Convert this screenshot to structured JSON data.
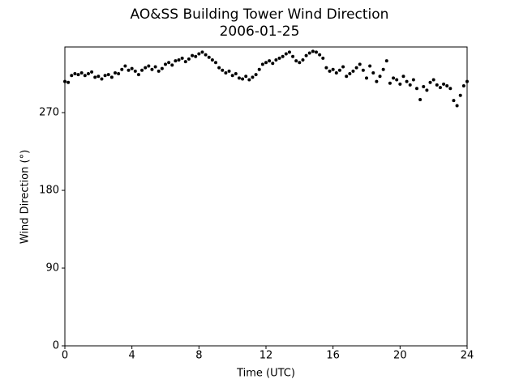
{
  "chart_data": {
    "type": "scatter",
    "title": "AO&SS Building Tower Wind Direction",
    "subtitle": "2006-01-25",
    "x_label": "Time (UTC)",
    "y_label": "Wind Direction (°)",
    "color": "#000000",
    "xlim": [
      0,
      24
    ],
    "xticks": [
      0,
      4,
      8,
      12,
      16,
      20,
      24
    ],
    "ylim": [
      0,
      346
    ],
    "yticks": [
      0,
      90,
      180,
      270
    ],
    "x": [
      0,
      0.2,
      0.4,
      0.6,
      0.8,
      1.0,
      1.2,
      1.4,
      1.6,
      1.8,
      2.0,
      2.2,
      2.4,
      2.6,
      2.8,
      3.0,
      3.2,
      3.4,
      3.6,
      3.8,
      4.0,
      4.2,
      4.4,
      4.6,
      4.8,
      5.0,
      5.2,
      5.4,
      5.6,
      5.8,
      6.0,
      6.2,
      6.4,
      6.6,
      6.8,
      7.0,
      7.2,
      7.4,
      7.6,
      7.8,
      8.0,
      8.2,
      8.4,
      8.6,
      8.8,
      9.0,
      9.2,
      9.4,
      9.6,
      9.8,
      10.0,
      10.2,
      10.4,
      10.6,
      10.8,
      11.0,
      11.2,
      11.4,
      11.6,
      11.8,
      12.0,
      12.2,
      12.4,
      12.6,
      12.8,
      13.0,
      13.2,
      13.4,
      13.6,
      13.8,
      14.0,
      14.2,
      14.4,
      14.6,
      14.8,
      15.0,
      15.2,
      15.4,
      15.6,
      15.8,
      16.0,
      16.2,
      16.4,
      16.6,
      16.8,
      17.0,
      17.2,
      17.4,
      17.6,
      17.8,
      18.0,
      18.2,
      18.4,
      18.6,
      18.8,
      19.0,
      19.2,
      19.4,
      19.6,
      19.8,
      20.0,
      20.2,
      20.4,
      20.6,
      20.8,
      21.0,
      21.2,
      21.4,
      21.6,
      21.8,
      22.0,
      22.2,
      22.4,
      22.6,
      22.8,
      23.0,
      23.2,
      23.4,
      23.6,
      23.8,
      24.0
    ],
    "values": [
      306,
      305,
      313,
      315,
      314,
      316,
      313,
      315,
      317,
      311,
      312,
      309,
      313,
      314,
      311,
      316,
      315,
      320,
      324,
      319,
      321,
      318,
      314,
      319,
      322,
      324,
      320,
      323,
      318,
      321,
      326,
      328,
      325,
      330,
      331,
      333,
      329,
      332,
      336,
      335,
      338,
      340,
      337,
      334,
      331,
      328,
      322,
      319,
      316,
      318,
      313,
      315,
      310,
      309,
      312,
      308,
      311,
      314,
      320,
      326,
      328,
      330,
      327,
      331,
      333,
      335,
      338,
      340,
      335,
      330,
      328,
      331,
      336,
      339,
      341,
      340,
      337,
      333,
      322,
      318,
      320,
      316,
      319,
      323,
      312,
      315,
      318,
      322,
      326,
      319,
      310,
      324,
      316,
      306,
      312,
      320,
      330,
      304,
      310,
      308,
      303,
      312,
      306,
      302,
      308,
      298,
      285,
      300,
      296,
      305,
      308,
      302,
      299,
      303,
      301,
      298,
      284,
      278,
      290,
      301,
      306
    ]
  }
}
